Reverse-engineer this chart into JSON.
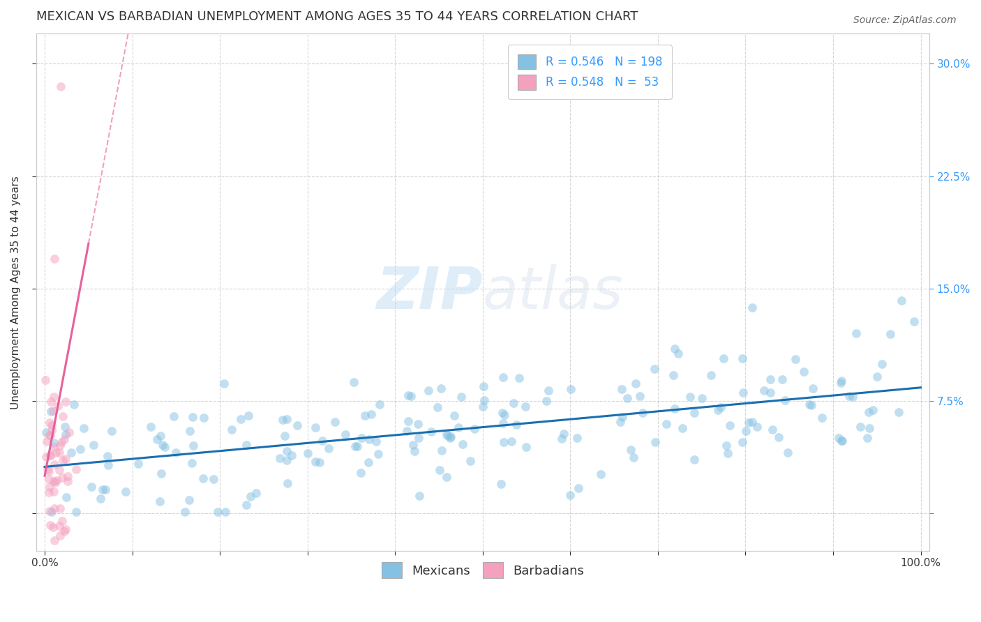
{
  "title": "MEXICAN VS BARBADIAN UNEMPLOYMENT AMONG AGES 35 TO 44 YEARS CORRELATION CHART",
  "source": "Source: ZipAtlas.com",
  "ylabel": "Unemployment Among Ages 35 to 44 years",
  "xlim": [
    -0.01,
    1.01
  ],
  "ylim": [
    -0.025,
    0.32
  ],
  "xticks": [
    0.0,
    0.1,
    0.2,
    0.3,
    0.4,
    0.5,
    0.6,
    0.7,
    0.8,
    0.9,
    1.0
  ],
  "xticklabels": [
    "0.0%",
    "",
    "",
    "",
    "",
    "",
    "",
    "",
    "",
    "",
    "100.0%"
  ],
  "yticks": [
    0.0,
    0.075,
    0.15,
    0.225,
    0.3
  ],
  "yticklabels_right": [
    "",
    "7.5%",
    "15.0%",
    "22.5%",
    "30.0%"
  ],
  "mexican_color": "#85c1e2",
  "barbadian_color": "#f4a0bf",
  "mexican_trend_color": "#1a6faf",
  "barbadian_trend_color": "#e8609a",
  "R_mexican": 0.546,
  "N_mexican": 198,
  "R_barbadian": 0.548,
  "N_barbadian": 53,
  "legend_label_mexican": "Mexicans",
  "legend_label_barbadian": "Barbadians",
  "watermark_zip": "ZIP",
  "watermark_atlas": "atlas",
  "background_color": "#ffffff",
  "grid_color": "#cccccc",
  "title_fontsize": 13,
  "axis_label_fontsize": 11,
  "tick_fontsize": 11,
  "legend_fontsize": 12,
  "right_tick_color": "#3399ff",
  "text_color": "#333333"
}
